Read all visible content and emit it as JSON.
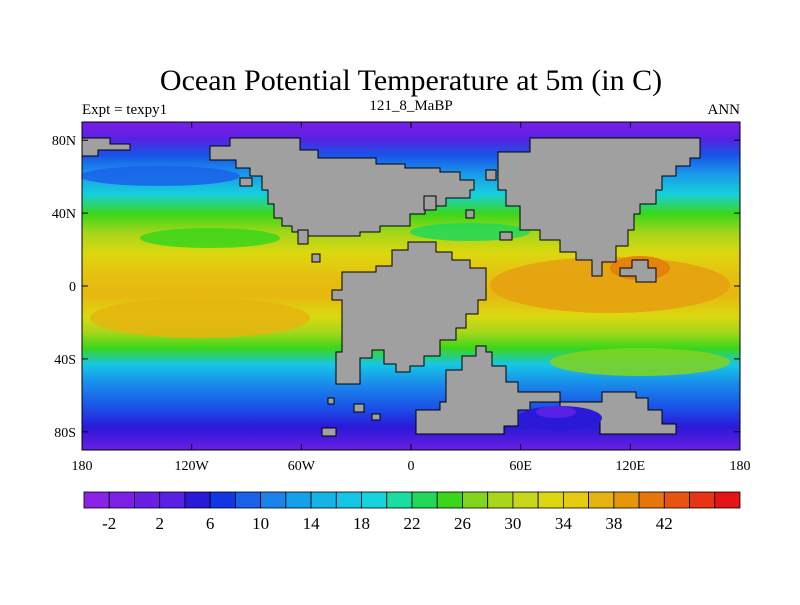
{
  "title": "Ocean Potential Temperature at 5m (in C)",
  "left_label": "Expt = texpy1",
  "center_label": "121_8_MaBP",
  "right_label": "ANN",
  "x_ticks": [
    "180",
    "120W",
    "60W",
    "0",
    "60E",
    "120E",
    "180"
  ],
  "y_ticks": [
    "80N",
    "40N",
    "0",
    "40S",
    "80S"
  ],
  "colorbar": {
    "labels": [
      "-2",
      "2",
      "6",
      "10",
      "14",
      "18",
      "22",
      "26",
      "30",
      "34",
      "38",
      "42"
    ],
    "colors": [
      "#8b22e8",
      "#7d1fe6",
      "#6a1ee4",
      "#5821e3",
      "#2a19d8",
      "#1437e6",
      "#1a62ea",
      "#1a84ea",
      "#16a0ea",
      "#15b3e6",
      "#14c6e6",
      "#16d3dc",
      "#1ade9f",
      "#22d858",
      "#3ad61a",
      "#82d41e",
      "#a8d61a",
      "#c8d61a",
      "#dcd810",
      "#e6cc10",
      "#e6b410",
      "#e6960a",
      "#e6760a",
      "#e65410",
      "#e63414",
      "#e61414"
    ]
  },
  "colors": {
    "land": "#a0a0a0",
    "polar": "#6a1ee4",
    "frame": "#000000"
  }
}
